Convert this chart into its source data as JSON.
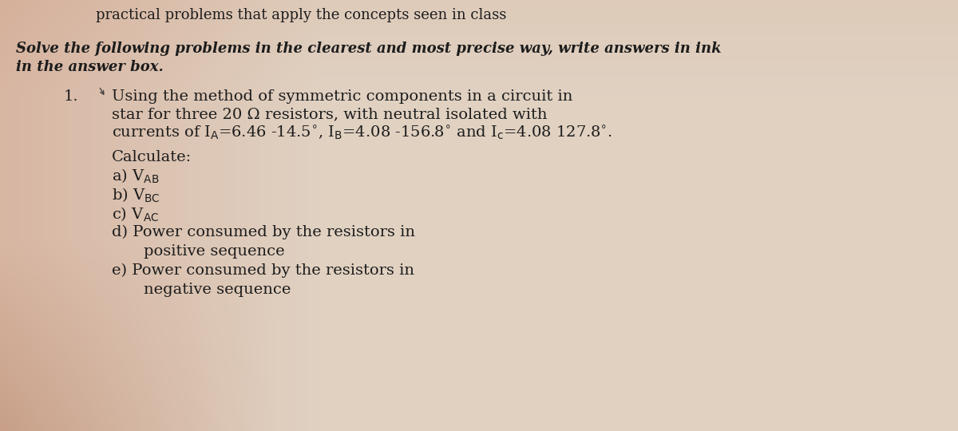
{
  "bg_color_main": "#d8c8bc",
  "bg_color_light": "#e8e0d8",
  "bg_color_pink_left": "#c09080",
  "bg_color_pink_top": "#b87860",
  "text_color": "#1c1c1c",
  "header_line1_partial": "practical problems that apply the concepts seen in class",
  "italic_line1": "Solve the following problems in the clearest and most precise way, write answers in ink",
  "italic_line2": "in the answer box.",
  "problem_number": "1.",
  "problem_line1": "Using the method of symmetric components in a circuit in",
  "problem_line2": "star for three 20 Ω resistors, with neutral isolated with",
  "problem_line3_pre": "currents of I",
  "problem_line3_post": " = 6.46 -14.5°, I",
  "problem_line3_post2": " = 4.08 -156.8° and I",
  "problem_line3_post3": " = 4.08 127.8°.",
  "calculate_label": "Calculate:",
  "item_a": "a) V",
  "item_a_sub": "AB",
  "item_b": "b) V",
  "item_b_sub": "BC",
  "item_c": "c) V",
  "item_c_sub": "AC",
  "item_d1": "d) Power consumed by the resistors in",
  "item_d2": "   positive sequence",
  "item_e1": "e) Power consumed by the resistors in",
  "item_e2": "   negative sequence",
  "main_fs": 14,
  "italic_fs": 13,
  "header_fs": 13
}
